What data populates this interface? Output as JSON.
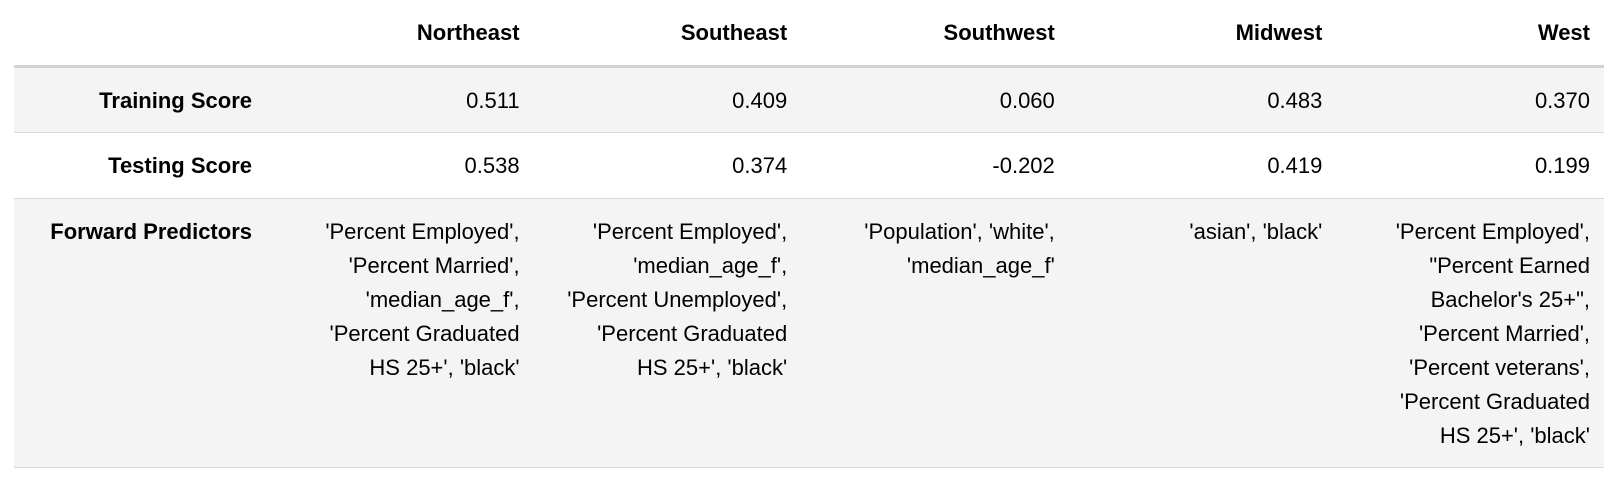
{
  "table": {
    "corner": "",
    "columns": [
      "Northeast",
      "Southeast",
      "Southwest",
      "Midwest",
      "West"
    ],
    "rows": [
      {
        "label": "Training Score",
        "values": [
          "0.511",
          "0.409",
          "0.060",
          "0.483",
          "0.370"
        ]
      },
      {
        "label": "Testing Score",
        "values": [
          "0.538",
          "0.374",
          "-0.202",
          "0.419",
          "0.199"
        ]
      },
      {
        "label": "Forward Predictors",
        "values": [
          "'Percent Employed', 'Percent Married', 'median_age_f', 'Percent Graduated HS 25+', 'black'",
          "'Percent Employed', 'median_age_f', 'Percent Unemployed', 'Percent Graduated HS 25+', 'black'",
          "'Population', 'white', 'median_age_f'",
          "'asian', 'black'",
          "'Percent Employed', \"Percent Earned Bachelor's 25+\", 'Percent Married', 'Percent veterans', 'Percent Graduated HS 25+', 'black'"
        ]
      }
    ]
  },
  "colors": {
    "header_rule": "#d4d4d4",
    "row_shade": "#f4f4f4",
    "row_rule": "#d9d9d9"
  }
}
